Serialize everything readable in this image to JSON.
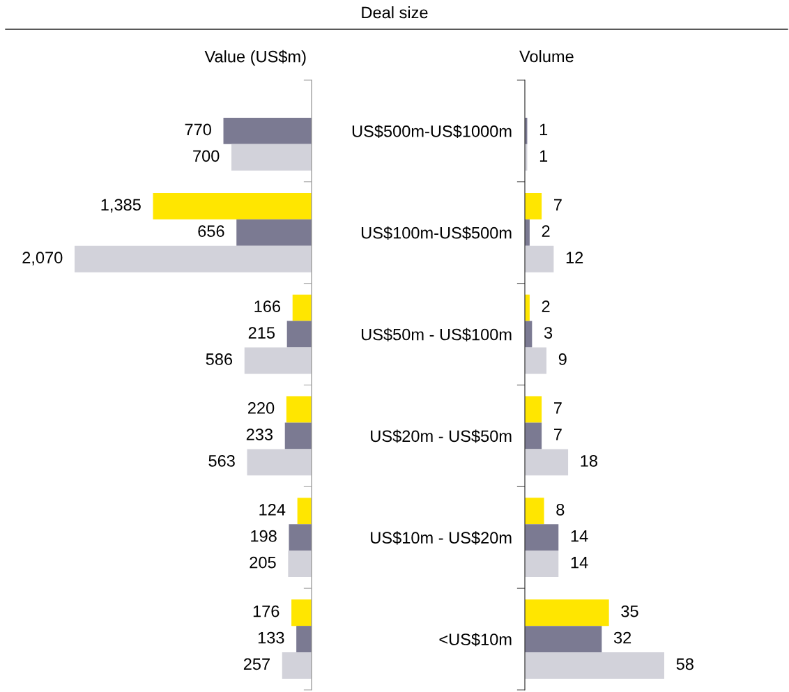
{
  "chart_data": [
    {
      "type": "bar",
      "orientation": "horizontal",
      "subtitle": "Value (US$m)",
      "annotations": [
        "Deal size"
      ],
      "categories": [
        "US$500m-US$1000m",
        "US$100m-US$500m",
        "US$50m - US$100m",
        "US$20m - US$50m",
        "US$10m - US$20m",
        "<US$10m"
      ],
      "series": [
        {
          "color": "#ffe600",
          "values": [
            null,
            1385,
            166,
            220,
            124,
            176
          ],
          "value_labels": [
            null,
            "1,385",
            "166",
            "220",
            "124",
            "176"
          ]
        },
        {
          "color": "#7b7a92",
          "values": [
            770,
            656,
            215,
            233,
            198,
            133
          ],
          "value_labels": [
            "770",
            "656",
            "215",
            "233",
            "198",
            "133"
          ]
        },
        {
          "color": "#d2d2da",
          "values": [
            700,
            2070,
            586,
            563,
            205,
            257
          ],
          "value_labels": [
            "700",
            "2,070",
            "586",
            "563",
            "205",
            "257"
          ]
        }
      ],
      "tick_labels": "y",
      "grid": false,
      "legend": false
    },
    {
      "type": "bar",
      "orientation": "horizontal",
      "subtitle": "Volume",
      "categories": [
        null,
        null,
        null,
        null,
        null,
        null
      ],
      "series": [
        {
          "color": "#ffe600",
          "values": [
            null,
            7,
            2,
            7,
            8,
            35
          ]
        },
        {
          "color": "#7b7a92",
          "values": [
            1,
            2,
            3,
            7,
            14,
            32
          ]
        },
        {
          "color": "#d2d2da",
          "values": [
            1,
            12,
            9,
            18,
            14,
            58
          ]
        }
      ],
      "tick_labels": false,
      "data_labels": true,
      "grid": false,
      "legend": false
    }
  ]
}
